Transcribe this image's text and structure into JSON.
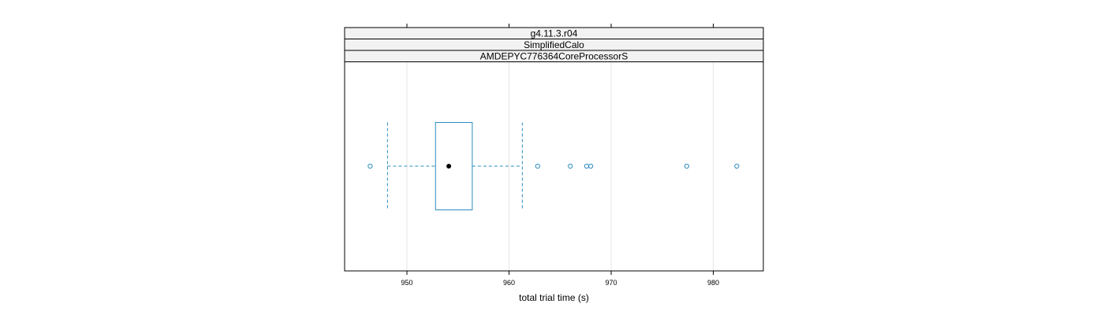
{
  "chart_data": {
    "type": "boxplot",
    "strips": [
      "g4.11.3.r04",
      "SimplifiedCalo",
      "AMDEPYC776364CoreProcessorS"
    ],
    "xlabel": "total trial time (s)",
    "xlim": [
      943.9,
      984.9
    ],
    "xticks": [
      950,
      960,
      970,
      980
    ],
    "grid": true,
    "box": {
      "whisker_low": 948.1,
      "q1": 952.8,
      "median": 954.1,
      "q3": 956.4,
      "whisker_high": 961.3
    },
    "outliers": [
      946.4,
      962.8,
      966.0,
      967.6,
      968.0,
      977.4,
      982.3
    ],
    "colors": {
      "box": "#2b8cbe",
      "median": "#000000",
      "strip_bg": "#f2f2f2",
      "grid": "#e6e6e6"
    }
  }
}
